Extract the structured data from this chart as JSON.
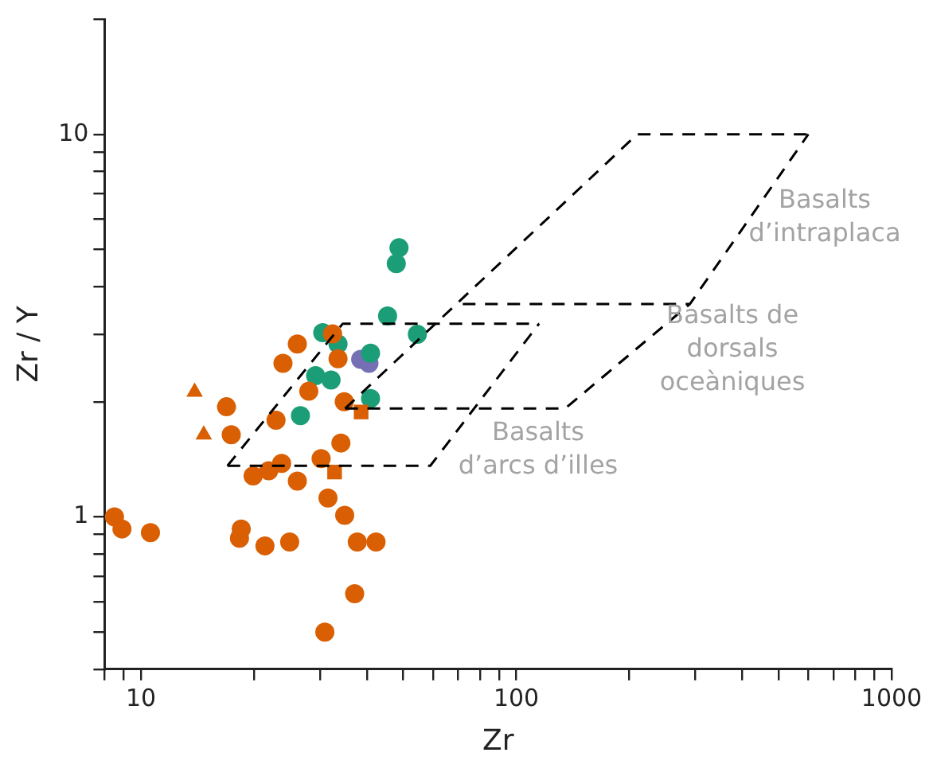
{
  "chart_data": {
    "type": "scatter",
    "xlabel": "Zr",
    "ylabel": "Zr / Y",
    "log": "xy",
    "grid": false,
    "legend": false,
    "xlim": [
      8,
      1000
    ],
    "ylim": [
      0.4,
      20
    ],
    "xticks": [
      {
        "value": 8,
        "label": null
      },
      {
        "value": 9,
        "label": null
      },
      10,
      {
        "value": 20,
        "label": null
      },
      {
        "value": 30,
        "label": null
      },
      {
        "value": 40,
        "label": null
      },
      {
        "value": 50,
        "label": null
      },
      {
        "value": 60,
        "label": null
      },
      {
        "value": 70,
        "label": null
      },
      {
        "value": 80,
        "label": null
      },
      {
        "value": 90,
        "label": null
      },
      100,
      {
        "value": 200,
        "label": null
      },
      {
        "value": 300,
        "label": null
      },
      {
        "value": 400,
        "label": null
      },
      {
        "value": 500,
        "label": null
      },
      {
        "value": 600,
        "label": null
      },
      {
        "value": 700,
        "label": null
      },
      {
        "value": 800,
        "label": null
      },
      {
        "value": 900,
        "label": null
      },
      1000
    ],
    "yticks": [
      {
        "value": 0.4,
        "label": null
      },
      {
        "value": 0.5,
        "label": null
      },
      {
        "value": 0.6,
        "label": null
      },
      {
        "value": 0.7,
        "label": null
      },
      {
        "value": 0.8,
        "label": null
      },
      {
        "value": 0.9,
        "label": null
      },
      1,
      {
        "value": 2,
        "label": null
      },
      {
        "value": 3,
        "label": null
      },
      {
        "value": 4,
        "label": null
      },
      {
        "value": 5,
        "label": null
      },
      {
        "value": 6,
        "label": null
      },
      {
        "value": 7,
        "label": null
      },
      {
        "value": 8,
        "label": null
      },
      {
        "value": 9,
        "label": null
      },
      10,
      {
        "value": 20,
        "label": null
      }
    ],
    "series": [
      {
        "type": "line",
        "color": "#000000",
        "line_style": "dashed",
        "marker": "none",
        "x": [
          35,
          210,
          600
        ],
        "values": [
          1.92,
          10,
          10
        ]
      },
      {
        "type": "line",
        "color": "#000000",
        "line_style": "dashed",
        "marker": "none",
        "x": [
          35,
          135,
          290,
          600
        ],
        "values": [
          1.92,
          1.92,
          3.6,
          10
        ]
      },
      {
        "type": "line",
        "color": "#000000",
        "line_style": "dashed",
        "marker": "none",
        "x": [
          72,
          290
        ],
        "values": [
          3.6,
          3.6
        ]
      },
      {
        "type": "line",
        "color": "#000000",
        "line_style": "dashed",
        "marker": "none",
        "x": [
          17,
          34.5,
          115
        ],
        "values": [
          1.36,
          3.2,
          3.2
        ]
      },
      {
        "type": "line",
        "color": "#000000",
        "line_style": "dashed",
        "marker": "none",
        "x": [
          17,
          59,
          115
        ],
        "values": [
          1.36,
          1.36,
          3.2
        ]
      },
      {
        "color": "#d95f02",
        "marker": "circle",
        "x": [
          8.5,
          8.9,
          10.6,
          16.9,
          17.4,
          22.9,
          18.5,
          18.3,
          21.4,
          24.9,
          19.9,
          21.9,
          23.7,
          26.1,
          28.0,
          23.9,
          26.1,
          32.4,
          33.5,
          34.8,
          30.2,
          34.1,
          31.5,
          34.9,
          37.7,
          42.3,
          37.1,
          30.9
        ],
        "values": [
          1.0,
          0.93,
          0.91,
          1.94,
          1.64,
          1.79,
          0.93,
          0.88,
          0.84,
          0.86,
          1.28,
          1.32,
          1.38,
          1.24,
          2.13,
          2.52,
          2.83,
          3.01,
          2.59,
          2.0,
          1.42,
          1.56,
          1.12,
          1.01,
          0.86,
          0.86,
          0.63,
          0.5
        ]
      },
      {
        "color": "#d95f02",
        "marker": "triangle",
        "x": [
          13.9,
          14.7
        ],
        "values": [
          2.12,
          1.64
        ]
      },
      {
        "color": "#d95f02",
        "marker": "square",
        "x": [
          38.6,
          32.8
        ],
        "values": [
          1.88,
          1.31
        ]
      },
      {
        "color": "#1b9e77",
        "marker": "circle",
        "x": [
          48.7,
          47.9,
          45.4,
          54.5,
          30.5,
          33.5,
          40.9,
          29.2,
          32.1,
          40.9,
          26.6
        ],
        "values": [
          5.05,
          4.59,
          3.35,
          3.0,
          3.03,
          2.83,
          2.68,
          2.34,
          2.28,
          2.04,
          1.84
        ]
      },
      {
        "color": "#7570b3",
        "marker": "circle",
        "x": [
          38.5,
          40.5
        ],
        "values": [
          2.58,
          2.52
        ]
      }
    ],
    "annotations": [
      "Basalts\nd’intraplaca",
      "Basalts de\ndorsals\noceàniques",
      "Basalts\nd’arcs d’illes"
    ]
  }
}
